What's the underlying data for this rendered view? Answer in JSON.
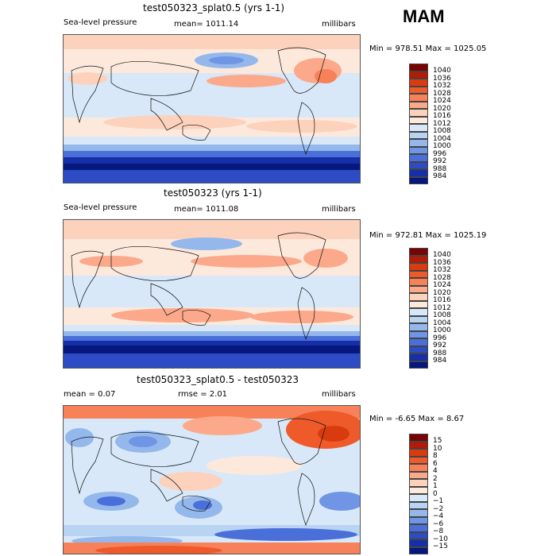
{
  "season": "MAM",
  "panels": [
    {
      "title": "test050323_splat0.5 (yrs 1-1)",
      "left_label": "Sea-level pressure",
      "mid_label": "mean= 1011.14",
      "units": "millibars",
      "minmax": "Min = 978.51 Max = 1025.05",
      "colorbar_labels": [
        "1040",
        "1036",
        "1032",
        "1028",
        "1024",
        "1020",
        "1016",
        "1012",
        "1008",
        "1004",
        "1000",
        "996",
        "992",
        "988",
        "984"
      ]
    },
    {
      "title": "test050323 (yrs 1-1)",
      "left_label": "Sea-level pressure",
      "mid_label": "mean= 1011.08",
      "units": "millibars",
      "minmax": "Min = 972.81 Max = 1025.19",
      "colorbar_labels": [
        "1040",
        "1036",
        "1032",
        "1028",
        "1024",
        "1020",
        "1016",
        "1012",
        "1008",
        "1004",
        "1000",
        "996",
        "992",
        "988",
        "984"
      ]
    },
    {
      "title": "test050323_splat0.5 - test050323",
      "left_label": "mean =     0.07",
      "mid_label": "rmse =     2.01",
      "units": "millibars",
      "minmax": "Min =  -6.65 Max =   8.67",
      "colorbar_labels": [
        "15",
        "10",
        "8",
        "6",
        "4",
        "2",
        "1",
        "0",
        "−1",
        "−2",
        "−4",
        "−6",
        "−8",
        "−10",
        "−15"
      ]
    }
  ],
  "colors": {
    "abs_scale": [
      "#7a0403",
      "#b41a04",
      "#d83b10",
      "#ef5a2a",
      "#f7825a",
      "#fba98a",
      "#fcd2bd",
      "#fde9dc",
      "#d8e8f8",
      "#b8d4f2",
      "#94b8ec",
      "#6f95e4",
      "#4a6fd8",
      "#2c4bc4",
      "#1530a6",
      "#06177e"
    ],
    "diff_scale": [
      "#7a0403",
      "#b41a04",
      "#d83b10",
      "#ef5a2a",
      "#f7825a",
      "#fba98a",
      "#fcd2bd",
      "#fde9dc",
      "#d8e8f8",
      "#b8d4f2",
      "#94b8ec",
      "#6f95e4",
      "#4a6fd8",
      "#2c4bc4",
      "#1530a6",
      "#06177e"
    ]
  }
}
